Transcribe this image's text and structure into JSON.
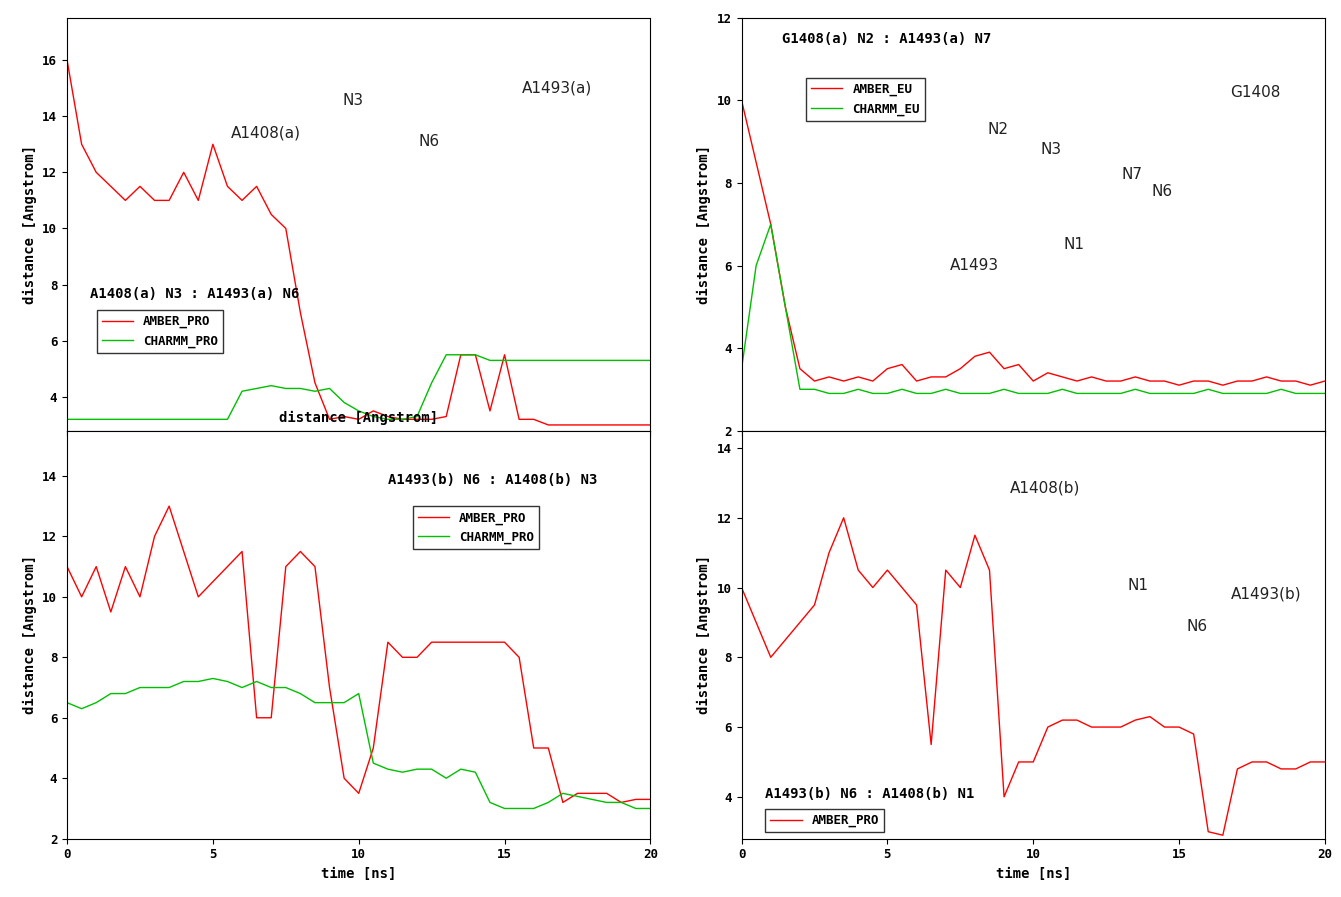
{
  "chart_data": [
    {
      "type": "line",
      "title": "A1408(a) N3 : A1493(a) N6",
      "x_label": "distance [Angstrom]",
      "y_label": "distance [Angstrom]",
      "x": [
        0,
        0.5,
        1,
        1.5,
        2,
        2.5,
        3,
        3.5,
        4,
        4.5,
        5,
        5.5,
        6,
        6.5,
        7,
        7.5,
        8,
        8.5,
        9,
        9.5,
        10,
        10.5,
        11,
        11.5,
        12,
        12.5,
        13,
        13.5,
        14,
        14.5,
        15,
        15.5,
        16,
        16.5,
        17,
        17.5,
        18,
        18.5,
        19,
        19.5,
        20
      ],
      "series": [
        {
          "name": "AMBER_PRO",
          "color": "#ff0000",
          "values": [
            16,
            13,
            12,
            11.5,
            11,
            11.5,
            11,
            11,
            12,
            11,
            13,
            11.5,
            11,
            11.5,
            10.5,
            10,
            7,
            4.5,
            3.2,
            3.3,
            3.2,
            3.5,
            3.3,
            3.2,
            3.2,
            3.2,
            3.3,
            5.5,
            5.5,
            3.5,
            5.5,
            3.2,
            3.2,
            3.0,
            3.0,
            3.0,
            3.0,
            3.0,
            3.0,
            3.0,
            3.0
          ]
        },
        {
          "name": "CHARMM_PRO",
          "color": "#00c000",
          "values": [
            3.2,
            3.2,
            3.2,
            3.2,
            3.2,
            3.2,
            3.2,
            3.2,
            3.2,
            3.2,
            3.2,
            3.2,
            4.2,
            4.3,
            4.4,
            4.3,
            4.3,
            4.2,
            4.3,
            3.8,
            3.5,
            3.3,
            3.2,
            3.2,
            3.3,
            4.5,
            5.5,
            5.5,
            5.5,
            5.3,
            5.3,
            5.3,
            5.3,
            5.3,
            5.3,
            5.3,
            5.3,
            5.3,
            5.3,
            5.3,
            5.3
          ]
        }
      ],
      "xlim": [
        0,
        20
      ],
      "xticks": [
        0,
        5,
        10,
        15,
        20
      ],
      "ylim": [
        2.8,
        17.5
      ],
      "yticks": [
        4,
        6,
        8,
        10,
        12,
        14,
        16
      ],
      "legend": "center left",
      "tick_labels": "y",
      "annotations": [
        "A1408(a)",
        "N3",
        "N6",
        "A1493(a)"
      ]
    },
    {
      "type": "line",
      "title": "G1408(a) N2 : A1493(a) N7",
      "y_label": "distance [Angstrom]",
      "x": [
        0,
        0.5,
        1,
        1.5,
        2,
        2.5,
        3,
        3.5,
        4,
        4.5,
        5,
        5.5,
        6,
        6.5,
        7,
        7.5,
        8,
        8.5,
        9,
        9.5,
        10,
        10.5,
        11,
        11.5,
        12,
        12.5,
        13,
        13.5,
        14,
        14.5,
        15,
        15.5,
        16,
        16.5,
        17,
        17.5,
        18,
        18.5,
        19,
        19.5,
        20
      ],
      "series": [
        {
          "name": "AMBER_EU",
          "color": "#ff0000",
          "values": [
            10,
            8.5,
            7,
            5,
            3.5,
            3.2,
            3.3,
            3.2,
            3.3,
            3.2,
            3.5,
            3.6,
            3.2,
            3.3,
            3.3,
            3.5,
            3.8,
            3.9,
            3.5,
            3.6,
            3.2,
            3.4,
            3.3,
            3.2,
            3.3,
            3.2,
            3.2,
            3.3,
            3.2,
            3.2,
            3.1,
            3.2,
            3.2,
            3.1,
            3.2,
            3.2,
            3.3,
            3.2,
            3.2,
            3.1,
            3.2
          ]
        },
        {
          "name": "CHARMM_EU",
          "color": "#00c000",
          "values": [
            3.5,
            6,
            7,
            5,
            3.0,
            3.0,
            2.9,
            2.9,
            3.0,
            2.9,
            2.9,
            3.0,
            2.9,
            2.9,
            3.0,
            2.9,
            2.9,
            2.9,
            3.0,
            2.9,
            2.9,
            2.9,
            3.0,
            2.9,
            2.9,
            2.9,
            2.9,
            3.0,
            2.9,
            2.9,
            2.9,
            2.9,
            3.0,
            2.9,
            2.9,
            2.9,
            2.9,
            3.0,
            2.9,
            2.9,
            2.9
          ]
        }
      ],
      "xlim": [
        0,
        20
      ],
      "xticks": [
        0,
        5,
        10,
        15,
        20
      ],
      "ylim": [
        2,
        12
      ],
      "yticks": [
        2,
        4,
        6,
        8,
        10,
        12
      ],
      "legend": "upper left",
      "tick_labels": "y",
      "annotations": [
        "N2",
        "N3",
        "G1408",
        "N7",
        "N6",
        "A1493",
        "N1"
      ]
    },
    {
      "type": "line",
      "title": "A1493(b) N6 : A1408(b) N3",
      "x_label": "time [ns]",
      "y_label": "distance [Angstrom]",
      "x": [
        0,
        0.5,
        1,
        1.5,
        2,
        2.5,
        3,
        3.5,
        4,
        4.5,
        5,
        5.5,
        6,
        6.5,
        7,
        7.5,
        8,
        8.5,
        9,
        9.5,
        10,
        10.5,
        11,
        11.5,
        12,
        12.5,
        13,
        13.5,
        14,
        14.5,
        15,
        15.5,
        16,
        16.5,
        17,
        17.5,
        18,
        18.5,
        19,
        19.5,
        20
      ],
      "series": [
        {
          "name": "AMBER_PRO",
          "color": "#ff0000",
          "values": [
            11,
            10,
            11,
            9.5,
            11,
            10,
            12,
            13,
            11.5,
            10,
            10.5,
            11,
            11.5,
            6,
            6,
            11,
            11.5,
            11,
            7,
            4,
            3.5,
            5,
            8.5,
            8,
            8,
            8.5,
            8.5,
            8.5,
            8.5,
            8.5,
            8.5,
            8,
            5,
            5,
            3.2,
            3.5,
            3.5,
            3.5,
            3.2,
            3.3,
            3.3
          ]
        },
        {
          "name": "CHARMM_PRO",
          "color": "#00c000",
          "values": [
            6.5,
            6.3,
            6.5,
            6.8,
            6.8,
            7.0,
            7.0,
            7.0,
            7.2,
            7.2,
            7.3,
            7.2,
            7.0,
            7.2,
            7.0,
            7.0,
            6.8,
            6.5,
            6.5,
            6.5,
            6.8,
            4.5,
            4.3,
            4.2,
            4.3,
            4.3,
            4.0,
            4.3,
            4.2,
            3.2,
            3.0,
            3.0,
            3.0,
            3.2,
            3.5,
            3.4,
            3.3,
            3.2,
            3.2,
            3.0,
            3.0
          ]
        }
      ],
      "xlim": [
        0,
        20
      ],
      "xticks": [
        0,
        5,
        10,
        15,
        20
      ],
      "ylim": [
        2,
        15.5
      ],
      "yticks": [
        2,
        4,
        6,
        8,
        10,
        12,
        14
      ],
      "legend": "upper right",
      "tick_labels": true
    },
    {
      "type": "line",
      "title": "A1493(b) N6 : A1408(b) N1",
      "x_label": "time [ns]",
      "y_label": "distance [Angstrom]",
      "x": [
        0,
        0.5,
        1,
        1.5,
        2,
        2.5,
        3,
        3.5,
        4,
        4.5,
        5,
        5.5,
        6,
        6.5,
        7,
        7.5,
        8,
        8.5,
        9,
        9.5,
        10,
        10.5,
        11,
        11.5,
        12,
        12.5,
        13,
        13.5,
        14,
        14.5,
        15,
        15.5,
        16,
        16.5,
        17,
        17.5,
        18,
        18.5,
        19,
        19.5,
        20
      ],
      "series": [
        {
          "name": "AMBER_PRO",
          "color": "#ff0000",
          "values": [
            10,
            9,
            8,
            8.5,
            9,
            9.5,
            11,
            12,
            10.5,
            10,
            10.5,
            10,
            9.5,
            5.5,
            10.5,
            10,
            11.5,
            10.5,
            4,
            5,
            5,
            6,
            6.2,
            6.2,
            6,
            6,
            6,
            6.2,
            6.3,
            6,
            6,
            5.8,
            3,
            2.9,
            4.8,
            5,
            5,
            4.8,
            4.8,
            5,
            5
          ]
        }
      ],
      "xlim": [
        0,
        20
      ],
      "xticks": [
        0,
        5,
        10,
        15,
        20
      ],
      "ylim": [
        2.8,
        14.5
      ],
      "yticks": [
        4,
        6,
        8,
        10,
        12,
        14
      ],
      "legend": "lower left",
      "tick_labels": true,
      "annotations": [
        "A1408(b)",
        "N1",
        "N6",
        "A1493(b)"
      ]
    }
  ]
}
